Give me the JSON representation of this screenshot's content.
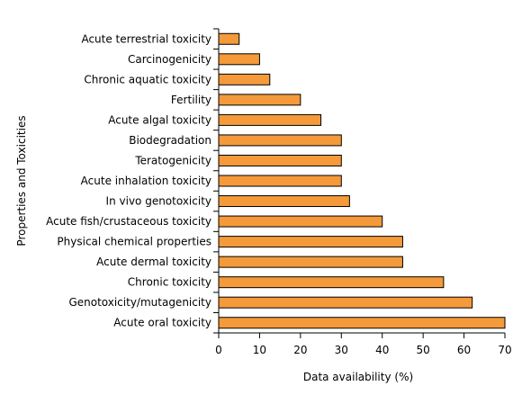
{
  "chart_data": {
    "type": "bar",
    "orientation": "horizontal",
    "xlabel": "Data availability (%)",
    "ylabel": "Properties and Toxicities",
    "xlim": [
      0,
      70
    ],
    "xticks": [
      "0",
      "10",
      "20",
      "30",
      "40",
      "50",
      "60",
      "70"
    ],
    "grid": false,
    "legend": "none",
    "bar_color": "#f49a3a",
    "categories": [
      "Acute terrestrial toxicity",
      "Carcinogenicity",
      "Chronic aquatic toxicity",
      "Fertility",
      "Acute algal toxicity",
      "Biodegradation",
      "Teratogenicity",
      "Acute inhalation toxicity",
      "In vivo genotoxicity",
      "Acute fish/crustaceous toxicity",
      "Physical chemical properties",
      "Acute dermal toxicity",
      "Chronic toxicity",
      "Genotoxicity/mutagenicity",
      "Acute oral toxicity"
    ],
    "values": [
      5,
      10,
      12.5,
      20,
      25,
      30,
      30,
      30,
      32,
      40,
      45,
      45,
      55,
      62,
      70
    ]
  }
}
